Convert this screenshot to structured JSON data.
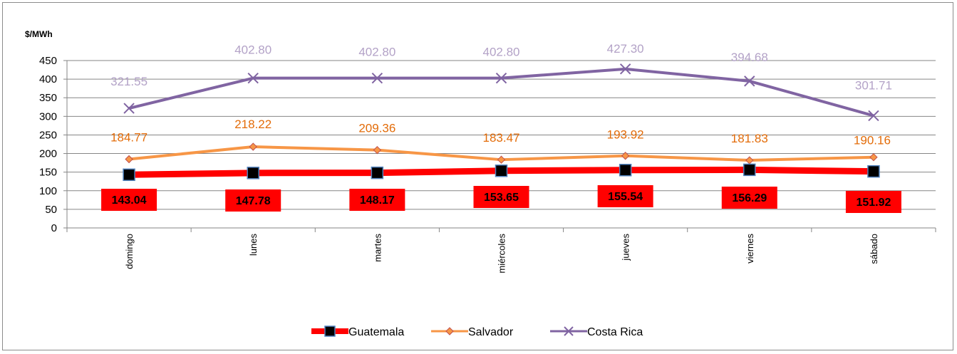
{
  "chart_data": {
    "type": "line",
    "ylabel": "$/MWh",
    "ylim": [
      0,
      450
    ],
    "yticks": [
      0,
      50,
      100,
      150,
      200,
      250,
      300,
      350,
      400,
      450
    ],
    "categories": [
      "domingo",
      "lunes",
      "martes",
      "miércoles",
      "jueves",
      "viernes",
      "sábado"
    ],
    "legend_position": "bottom",
    "grid": true,
    "series": [
      {
        "name": "Guatemala",
        "color": "#ff0000",
        "marker": "square",
        "values": [
          143.04,
          147.78,
          148.17,
          153.65,
          155.54,
          156.29,
          151.92
        ],
        "labels": [
          "143.04",
          "147.78",
          "148.17",
          "153.65",
          "155.54",
          "156.29",
          "151.92"
        ]
      },
      {
        "name": "Salvador",
        "color": "#f79646",
        "label_color": "#e36c09",
        "marker": "diamond",
        "values": [
          184.77,
          218.22,
          209.36,
          183.47,
          193.92,
          181.83,
          190.16
        ],
        "labels": [
          "184.77",
          "218.22",
          "209.36",
          "183.47",
          "193.92",
          "181.83",
          "190.16"
        ]
      },
      {
        "name": "Costa Rica",
        "color": "#8064a2",
        "label_color": "#b3a2c7",
        "marker": "x",
        "values": [
          321.55,
          402.8,
          402.8,
          402.8,
          427.3,
          394.68,
          301.71
        ],
        "labels": [
          "321.55",
          "402.80",
          "402.80",
          "402.80",
          "427.30",
          "394.68",
          "301.71"
        ]
      }
    ]
  }
}
